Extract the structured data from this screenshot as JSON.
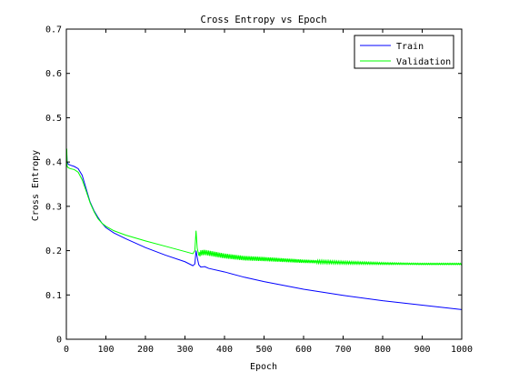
{
  "chart_data": {
    "type": "line",
    "title": "Cross Entropy vs Epoch",
    "xlabel": "Epoch",
    "ylabel": "Cross Entropy",
    "xlim": [
      0,
      1000
    ],
    "ylim": [
      0,
      0.7
    ],
    "x_ticks": [
      0,
      100,
      200,
      300,
      400,
      500,
      600,
      700,
      800,
      900,
      1000
    ],
    "y_ticks": [
      0,
      0.1,
      0.2,
      0.3,
      0.4,
      0.5,
      0.6,
      0.7
    ],
    "grid": false,
    "legend_position": "top-right",
    "series": [
      {
        "name": "Train",
        "color": "#0000ff",
        "x": [
          0,
          1,
          2,
          5,
          10,
          20,
          30,
          40,
          50,
          60,
          70,
          80,
          90,
          100,
          120,
          150,
          200,
          250,
          300,
          320,
          325,
          328,
          332,
          335,
          340,
          350,
          360,
          400,
          450,
          500,
          600,
          700,
          800,
          900,
          1000
        ],
        "y": [
          0.4,
          0.42,
          0.4,
          0.395,
          0.393,
          0.39,
          0.385,
          0.37,
          0.34,
          0.31,
          0.29,
          0.275,
          0.262,
          0.252,
          0.24,
          0.227,
          0.207,
          0.19,
          0.175,
          0.166,
          0.17,
          0.2,
          0.18,
          0.168,
          0.163,
          0.164,
          0.16,
          0.152,
          0.14,
          0.13,
          0.113,
          0.099,
          0.087,
          0.077,
          0.067
        ]
      },
      {
        "name": "Validation",
        "color": "#00ff00",
        "x": [
          0,
          1,
          2,
          5,
          10,
          20,
          30,
          40,
          50,
          60,
          70,
          80,
          90,
          100,
          120,
          150,
          200,
          250,
          300,
          320,
          325,
          328,
          331,
          335,
          340,
          350,
          400,
          450,
          500,
          600,
          700,
          800,
          900,
          1000
        ],
        "y": [
          0.39,
          0.43,
          0.39,
          0.387,
          0.385,
          0.383,
          0.377,
          0.36,
          0.335,
          0.308,
          0.288,
          0.272,
          0.262,
          0.255,
          0.245,
          0.235,
          0.222,
          0.21,
          0.198,
          0.193,
          0.2,
          0.245,
          0.205,
          0.19,
          0.195,
          0.196,
          0.188,
          0.183,
          0.181,
          0.176,
          0.173,
          0.171,
          0.17,
          0.17
        ]
      }
    ]
  }
}
